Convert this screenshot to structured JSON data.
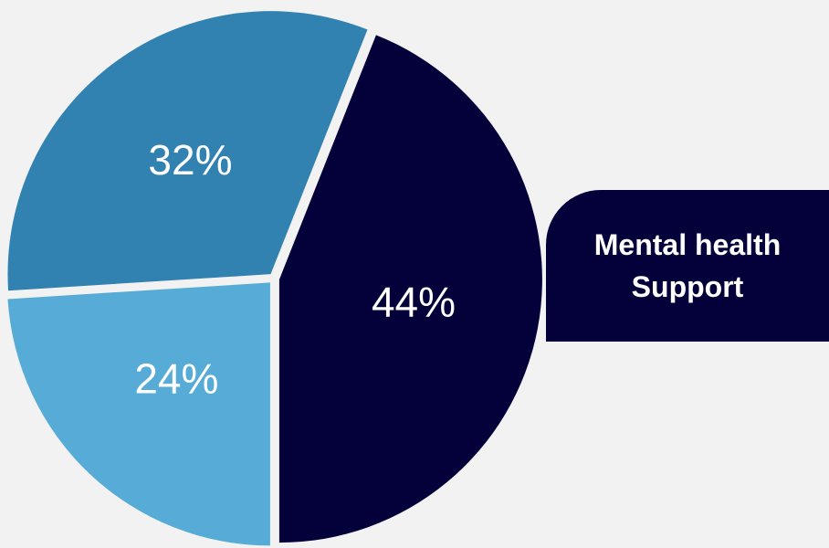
{
  "chart_data": {
    "type": "pie",
    "values": [
      44,
      24,
      32
    ],
    "value_labels": [
      "44%",
      "24%",
      "32%"
    ],
    "colors": [
      "#03003a",
      "#56acd6",
      "#3182b0"
    ],
    "annotation": "Mental health Support"
  }
}
